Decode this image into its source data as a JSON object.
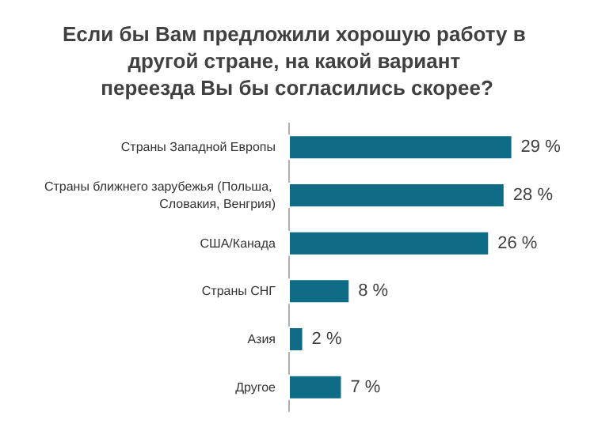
{
  "chart_data": {
    "type": "bar",
    "orientation": "horizontal",
    "title": "Если бы Вам предложили хорошую работу в другой стране, на какой вариант переезда Вы бы согласились скорее?",
    "categories": [
      "Страны Западной Европы",
      "Страны ближнего зарубежья (Польша, Словакия, Венгрия)",
      "США/Канада",
      "Страны СНГ",
      "Азия",
      "Другое"
    ],
    "values": [
      29,
      28,
      26,
      8,
      2,
      7
    ],
    "value_labels": [
      "29 %",
      "28 %",
      "26 %",
      "8 %",
      "2 %",
      "7 %"
    ],
    "color": "#0f6b86"
  }
}
